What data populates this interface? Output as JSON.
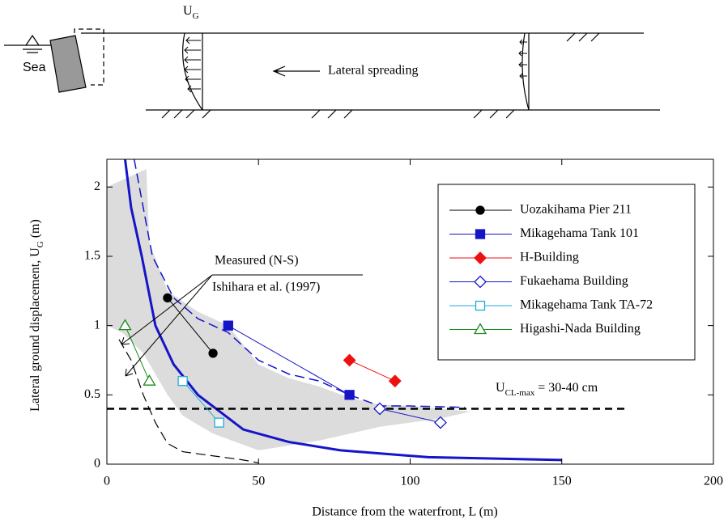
{
  "diagram": {
    "ug_label": "U",
    "ug_sub": "G",
    "sea": "Sea",
    "spreading": "Lateral spreading"
  },
  "chart_data": {
    "type": "line",
    "xlabel": "Distance from the waterfront,  L      (m)",
    "ylabel": "Lateral ground displacement,   U",
    "ylabel_sub": "G",
    "ylabel_unit": "   (m)",
    "xlim": [
      0,
      200
    ],
    "ylim": [
      0,
      2.2
    ],
    "xticks": [
      0,
      50,
      100,
      150,
      200
    ],
    "yticks": [
      0,
      0.5,
      1,
      1.5,
      2
    ],
    "annotations": {
      "measured": "Measured (N-S)",
      "source": "Ishihara et al. (1997)",
      "ucl": "U",
      "ucl_sub": "CL-max",
      "ucl_rest": " = 30-40 cm"
    },
    "threshold": {
      "value": 0.4,
      "x": [
        0,
        172
      ]
    },
    "band": {
      "color": "#dcdcdc",
      "x": [
        0,
        5,
        13,
        14,
        20,
        30,
        40,
        50,
        60,
        70,
        80,
        90,
        100,
        120,
        110,
        90,
        70,
        50,
        35,
        25,
        20,
        12,
        5,
        0
      ],
      "values": [
        2.0,
        2.05,
        2.13,
        1.6,
        1.25,
        1.1,
        1.0,
        0.72,
        0.62,
        0.56,
        0.48,
        0.43,
        0.42,
        0.38,
        0.33,
        0.27,
        0.17,
        0.1,
        0.22,
        0.35,
        0.5,
        0.8,
        0.95,
        1.0
      ]
    },
    "curves": [
      {
        "color": "#1515c8",
        "width": 3,
        "dash": "",
        "x": [
          6,
          8,
          11.5,
          16,
          22,
          30,
          45,
          60,
          77,
          106,
          150
        ],
        "values": [
          2.2,
          1.85,
          1.5,
          1.0,
          0.72,
          0.5,
          0.25,
          0.16,
          0.1,
          0.05,
          0.03
        ]
      },
      {
        "color": "#1515c8",
        "width": 1.5,
        "dash": "12 6",
        "x": [
          9,
          15,
          22,
          30,
          40,
          50,
          60,
          70,
          80,
          90,
          100,
          118
        ],
        "values": [
          2.2,
          1.5,
          1.2,
          1.05,
          0.95,
          0.75,
          0.65,
          0.6,
          0.5,
          0.42,
          0.42,
          0.41
        ]
      },
      {
        "color": "#000000",
        "width": 1.2,
        "dash": "12 6",
        "x": [
          4,
          8,
          12,
          16,
          20,
          25,
          35,
          45,
          50
        ],
        "values": [
          0.9,
          0.75,
          0.5,
          0.3,
          0.15,
          0.09,
          0.06,
          0.03,
          0.01
        ]
      }
    ],
    "series": [
      {
        "name": "Uozakihama Pier 211",
        "color": "#000000",
        "marker": "circle",
        "filled": true,
        "x": [
          20,
          35
        ],
        "values": [
          1.2,
          0.8
        ]
      },
      {
        "name": "Mikagehama Tank 101",
        "color": "#1515c8",
        "marker": "square",
        "filled": true,
        "x": [
          40,
          80
        ],
        "values": [
          1.0,
          0.5
        ]
      },
      {
        "name": "H-Building",
        "color": "#ee1111",
        "marker": "diamond",
        "filled": true,
        "x": [
          80,
          95
        ],
        "values": [
          0.75,
          0.6
        ]
      },
      {
        "name": "Fukaehama Building",
        "color": "#1515c8",
        "marker": "diamond",
        "filled": false,
        "x": [
          90,
          110
        ],
        "values": [
          0.4,
          0.3
        ]
      },
      {
        "name": "Mikagehama Tank TA-72",
        "color": "#22aadd",
        "marker": "square",
        "filled": false,
        "x": [
          25,
          37
        ],
        "values": [
          0.6,
          0.3
        ]
      },
      {
        "name": "Higashi-Nada Building",
        "color": "#1a8a1a",
        "marker": "triangle",
        "filled": false,
        "x": [
          6,
          14
        ],
        "values": [
          1.0,
          0.6
        ]
      }
    ]
  }
}
